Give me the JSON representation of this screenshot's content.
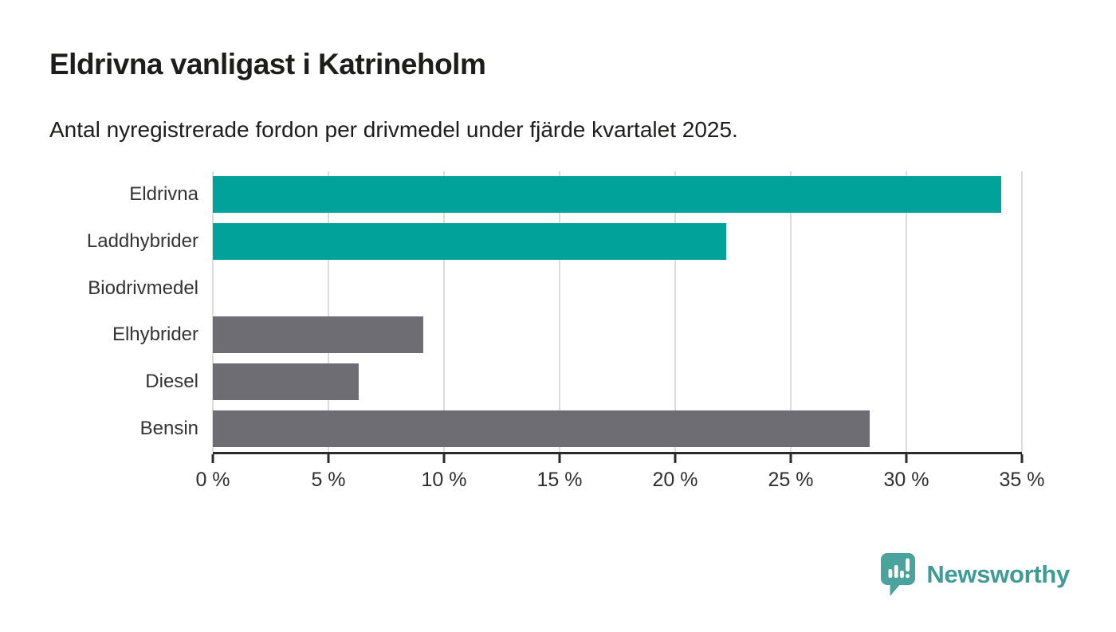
{
  "header": {
    "title": "Eldrivna vanligast i Katrineholm",
    "subtitle": "Antal nyregistrerade fordon per drivmedel under fjärde kvartalet 2025."
  },
  "chart_data": {
    "type": "bar",
    "orientation": "horizontal",
    "title": "Eldrivna vanligast i Katrineholm",
    "subtitle": "Antal nyregistrerade fordon per drivmedel under fjärde kvartalet 2025.",
    "categories": [
      "Eldrivna",
      "Laddhybrider",
      "Biodrivmedel",
      "Elhybrider",
      "Diesel",
      "Bensin"
    ],
    "values": [
      34.1,
      22.2,
      0,
      9.1,
      6.3,
      28.4
    ],
    "unit": "%",
    "xlim": [
      0,
      35
    ],
    "xticks": [
      0,
      5,
      10,
      15,
      20,
      25,
      30,
      35
    ],
    "xtick_labels": [
      "0 %",
      "5 %",
      "10 %",
      "15 %",
      "20 %",
      "25 %",
      "30 %",
      "35 %"
    ],
    "bar_colors": [
      "#00a29a",
      "#00a29a",
      "#00a29a",
      "#6e6d73",
      "#6e6d73",
      "#6e6d73"
    ],
    "grid": true,
    "legend": null,
    "xlabel": "",
    "ylabel": ""
  },
  "colors": {
    "teal": "#00a29a",
    "gray": "#6e6d73",
    "gridline": "#dcdcdc",
    "axis": "#2b2b2b",
    "text": "#1d1d1b",
    "brand": "#3e9b95",
    "logo_icon": "#4ba39d"
  },
  "footer": {
    "brand": "Newsworthy"
  }
}
